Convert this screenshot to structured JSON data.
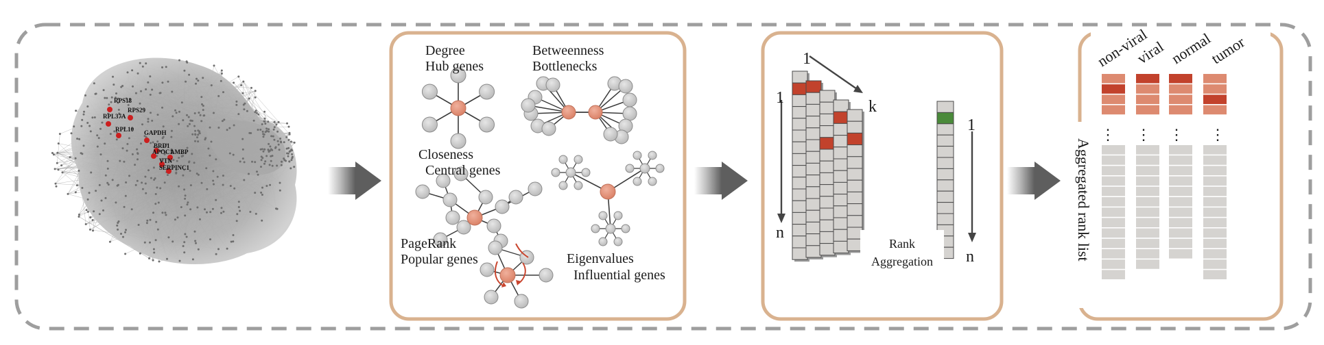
{
  "network": {
    "gene_labels": [
      "RPS18",
      "RPS29",
      "RPL37A",
      "RPL10",
      "GAPDH",
      "BRD1",
      "APOC1",
      "AMBP",
      "VTN",
      "SERPINC1"
    ]
  },
  "centrality": {
    "degree_title": "Degree",
    "degree_subtitle": "Hub genes",
    "betweenness_title": "Betweenness",
    "betweenness_subtitle": "Bottlenecks",
    "closeness_title": "Closeness",
    "closeness_subtitle": "Central genes",
    "pagerank_title": "PageRank",
    "pagerank_subtitle": "Popular genes",
    "eigen_title": "Eigenvalues",
    "eigen_subtitle": "Influential genes"
  },
  "aggregation": {
    "top_index": "1",
    "k_label": "k",
    "left_start": "1",
    "left_end": "n",
    "right_start": "1",
    "right_end": "n",
    "box_line1": "Rank",
    "box_line2": "Aggregation"
  },
  "ranklists": {
    "columns": [
      "non-viral",
      "viral",
      "normal",
      "tumor"
    ],
    "side_label": "Aggregated rank list",
    "ellipsis": "⋮"
  },
  "colors": {
    "panel_border": "#d9b28f",
    "outer_dash": "#9e9e9e",
    "node_gray": "#c8c8c8",
    "node_hub": "#e2957f",
    "cell_gray": "#d5d3d0",
    "cell_red": "#c2422c",
    "cell_salmon": "#dd8a70",
    "cell_green": "#4a8a3a",
    "gene_red": "#cc1f1f",
    "arrow_dark": "#6f6f6f"
  }
}
